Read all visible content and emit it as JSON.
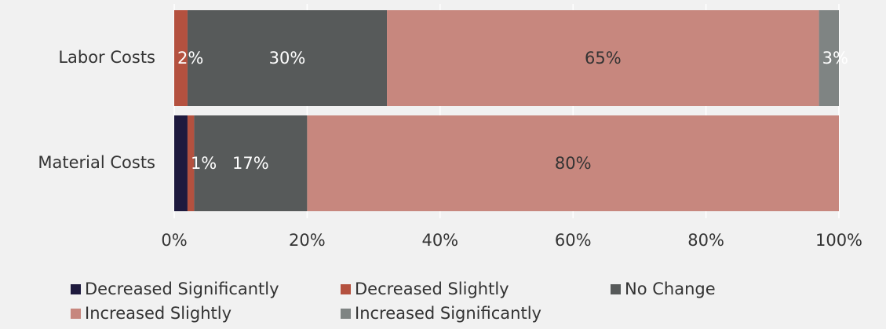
{
  "chart_data": {
    "type": "stacked-bar-horizontal",
    "categories": [
      "Labor Costs",
      "Material Costs"
    ],
    "series": [
      {
        "name": "Decreased Significantly",
        "color": "#1e1a3e",
        "values": [
          0,
          2
        ],
        "value_labels": [
          null,
          null
        ]
      },
      {
        "name": "Decreased Slightly",
        "color": "#b4513f",
        "values": [
          2,
          1
        ],
        "value_labels": [
          "2%",
          "1%"
        ]
      },
      {
        "name": "No Change",
        "color": "#575a5a",
        "values": [
          30,
          17
        ],
        "value_labels": [
          "30%",
          "17%"
        ]
      },
      {
        "name": "Increased Slightly",
        "color": "#c7877e",
        "values": [
          65,
          80
        ],
        "value_labels": [
          "65%",
          "80%"
        ]
      },
      {
        "name": "Increased Significantly",
        "color": "#7f8483",
        "values": [
          3,
          0
        ],
        "value_labels": [
          "3%",
          null
        ]
      }
    ],
    "xlim": [
      0,
      100
    ],
    "xticks": [
      {
        "value": 0,
        "label": "0%"
      },
      {
        "value": 20,
        "label": "20%"
      },
      {
        "value": 40,
        "label": "40%"
      },
      {
        "value": 60,
        "label": "60%"
      },
      {
        "value": 80,
        "label": "80%"
      },
      {
        "value": 100,
        "label": "100%"
      }
    ],
    "grid": true,
    "legend": "bottom"
  }
}
